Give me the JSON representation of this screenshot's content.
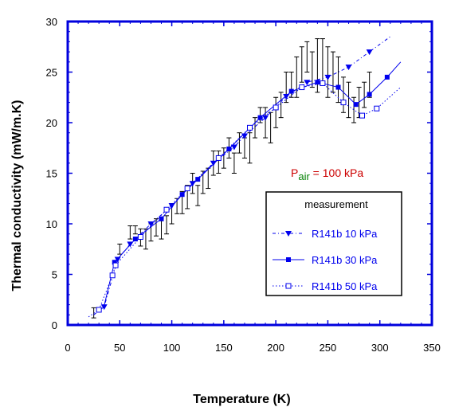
{
  "chart_data": {
    "type": "scatter",
    "xlabel": "Temperature  (K)",
    "ylabel": "Thermal conductivity (mW/m.K)",
    "xlim": [
      0,
      350
    ],
    "ylim": [
      0,
      30
    ],
    "xticks": [
      "0",
      "50",
      "100",
      "150",
      "200",
      "250",
      "300",
      "350"
    ],
    "yticks": [
      "0",
      "5",
      "10",
      "15",
      "20",
      "25",
      "30"
    ],
    "grid": false,
    "annotation": {
      "prefix": "P",
      "subscript": "air",
      "suffix": " = 100 kPa",
      "color": "#cc0000"
    },
    "legend": {
      "title": "measurement",
      "position": "lower-right"
    },
    "series": [
      {
        "name": "R141b 10 kPa",
        "marker": "triangle-down",
        "line": "dash-dot",
        "color": "#0000ee",
        "x": [
          25,
          35,
          48,
          60,
          80,
          100,
          120,
          140,
          160,
          170,
          190,
          210,
          230,
          250,
          270,
          290,
          310
        ],
        "y": [
          1.0,
          1.8,
          6.5,
          8.0,
          10.0,
          11.8,
          14.0,
          16.0,
          17.6,
          18.7,
          20.5,
          22.6,
          24.0,
          24.5,
          25.5,
          27.0,
          28.5
        ]
      },
      {
        "name": "R141b 30 kPa",
        "marker": "square-filled",
        "line": "solid",
        "color": "#0000ee",
        "x": [
          35,
          45,
          65,
          90,
          110,
          125,
          155,
          185,
          215,
          240,
          260,
          277,
          290,
          307,
          320
        ],
        "y": [
          1.9,
          6.2,
          8.5,
          10.5,
          12.9,
          14.4,
          17.4,
          20.5,
          23.1,
          24.0,
          23.5,
          21.8,
          22.8,
          24.5,
          26.0
        ]
      },
      {
        "name": "R141b 50 kPa",
        "marker": "square-open",
        "line": "dotted",
        "color": "#0000ee",
        "x": [
          20,
          30,
          43,
          46,
          70,
          95,
          115,
          145,
          175,
          200,
          225,
          245,
          265,
          283,
          297,
          320
        ],
        "y": [
          0.8,
          1.5,
          4.9,
          5.9,
          8.7,
          11.4,
          13.5,
          16.5,
          19.5,
          21.5,
          23.5,
          23.9,
          22.0,
          20.7,
          21.4,
          23.5
        ]
      }
    ],
    "error_bars": [
      {
        "x": 25,
        "low": 0.7,
        "high": 1.7
      },
      {
        "x": 50,
        "low": 7.0,
        "high": 8.0
      },
      {
        "x": 60,
        "low": 8.5,
        "high": 9.8
      },
      {
        "x": 65,
        "low": 9.0,
        "high": 9.8
      },
      {
        "x": 70,
        "low": 7.8,
        "high": 9.5
      },
      {
        "x": 75,
        "low": 7.5,
        "high": 9.5
      },
      {
        "x": 80,
        "low": 8.3,
        "high": 10.0
      },
      {
        "x": 85,
        "low": 8.8,
        "high": 10.5
      },
      {
        "x": 90,
        "low": 8.5,
        "high": 10.3
      },
      {
        "x": 95,
        "low": 9.0,
        "high": 10.8
      },
      {
        "x": 100,
        "low": 10.0,
        "high": 12.0
      },
      {
        "x": 105,
        "low": 11.0,
        "high": 12.5
      },
      {
        "x": 110,
        "low": 11.0,
        "high": 13.2
      },
      {
        "x": 115,
        "low": 11.5,
        "high": 13.8
      },
      {
        "x": 120,
        "low": 13.0,
        "high": 15.0
      },
      {
        "x": 125,
        "low": 11.8,
        "high": 13.8
      },
      {
        "x": 130,
        "low": 13.0,
        "high": 15.2
      },
      {
        "x": 135,
        "low": 13.5,
        "high": 15.5
      },
      {
        "x": 140,
        "low": 14.8,
        "high": 17.2
      },
      {
        "x": 145,
        "low": 15.0,
        "high": 17.2
      },
      {
        "x": 150,
        "low": 15.5,
        "high": 17.5
      },
      {
        "x": 155,
        "low": 16.5,
        "high": 18.5
      },
      {
        "x": 160,
        "low": 15.0,
        "high": 17.0
      },
      {
        "x": 165,
        "low": 17.0,
        "high": 19.0
      },
      {
        "x": 170,
        "low": 16.5,
        "high": 18.5
      },
      {
        "x": 175,
        "low": 16.0,
        "high": 19.0
      },
      {
        "x": 180,
        "low": 18.5,
        "high": 20.5
      },
      {
        "x": 185,
        "low": 20.0,
        "high": 21.5
      },
      {
        "x": 190,
        "low": 18.5,
        "high": 21.5
      },
      {
        "x": 195,
        "low": 18.0,
        "high": 21.0
      },
      {
        "x": 200,
        "low": 19.5,
        "high": 22.5
      },
      {
        "x": 205,
        "low": 20.5,
        "high": 23.0
      },
      {
        "x": 210,
        "low": 22.0,
        "high": 25.0
      },
      {
        "x": 215,
        "low": 22.5,
        "high": 25.0
      },
      {
        "x": 220,
        "low": 22.5,
        "high": 26.5
      },
      {
        "x": 225,
        "low": 24.0,
        "high": 27.5
      },
      {
        "x": 230,
        "low": 25.0,
        "high": 28.0
      },
      {
        "x": 235,
        "low": 23.5,
        "high": 27.0
      },
      {
        "x": 240,
        "low": 23.0,
        "high": 28.3
      },
      {
        "x": 245,
        "low": 24.0,
        "high": 28.3
      },
      {
        "x": 250,
        "low": 22.5,
        "high": 27.5
      },
      {
        "x": 255,
        "low": 23.0,
        "high": 27.0
      },
      {
        "x": 260,
        "low": 22.0,
        "high": 26.5
      },
      {
        "x": 265,
        "low": 21.0,
        "high": 24.5
      },
      {
        "x": 270,
        "low": 20.5,
        "high": 24.0
      },
      {
        "x": 275,
        "low": 20.0,
        "high": 22.5
      },
      {
        "x": 280,
        "low": 20.5,
        "high": 23.5
      },
      {
        "x": 285,
        "low": 21.5,
        "high": 24.0
      },
      {
        "x": 290,
        "low": 22.5,
        "high": 25.0
      }
    ]
  }
}
